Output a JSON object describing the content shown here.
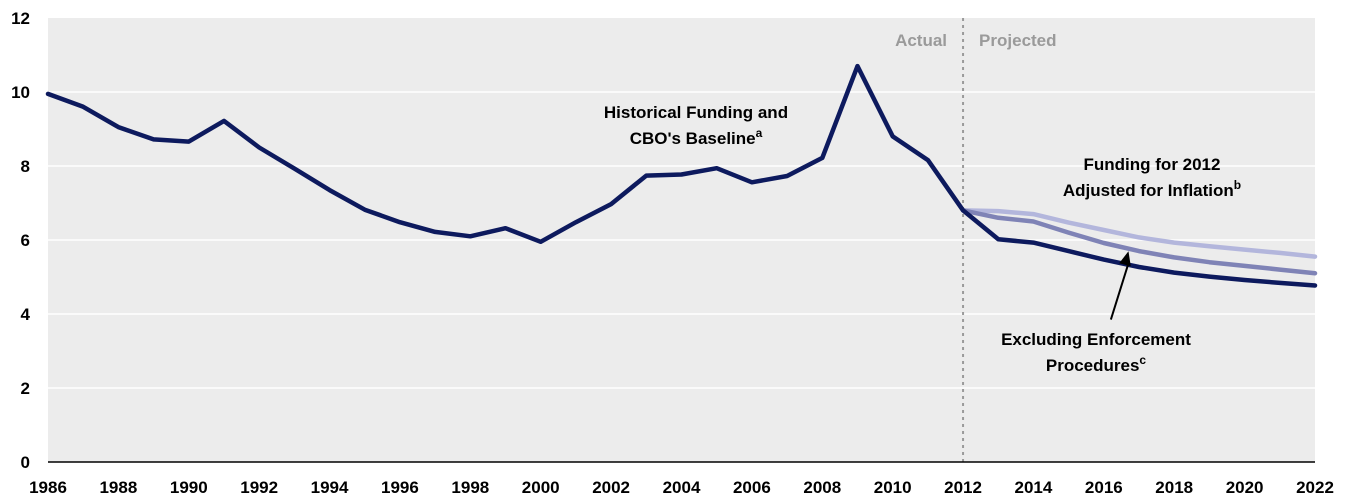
{
  "chart_data": {
    "type": "line",
    "x": [
      1986,
      1987,
      1988,
      1989,
      1990,
      1991,
      1992,
      1993,
      1994,
      1995,
      1996,
      1997,
      1998,
      1999,
      2000,
      2001,
      2002,
      2003,
      2004,
      2005,
      2006,
      2007,
      2008,
      2009,
      2010,
      2011,
      2012,
      2013,
      2014,
      2015,
      2016,
      2017,
      2018,
      2019,
      2020,
      2021,
      2022
    ],
    "xlim": [
      1986,
      2022
    ],
    "ylim": [
      0,
      12
    ],
    "yticks": [
      "0",
      "2",
      "4",
      "6",
      "8",
      "10",
      "12"
    ],
    "xticks": [
      "1986",
      "1988",
      "1990",
      "1992",
      "1994",
      "1996",
      "1998",
      "2000",
      "2002",
      "2004",
      "2006",
      "2008",
      "2010",
      "2012",
      "2014",
      "2016",
      "2018",
      "2020",
      "2022"
    ],
    "divider_x": 2012,
    "region_labels": {
      "actual": "Actual",
      "projected": "Projected"
    },
    "grid": true,
    "series": [
      {
        "key": "baseline",
        "color": "#0d1a5e",
        "x": [
          1986,
          1987,
          1988,
          1989,
          1990,
          1991,
          1992,
          1993,
          1994,
          1995,
          1996,
          1997,
          1998,
          1999,
          2000,
          2001,
          2002,
          2003,
          2004,
          2005,
          2006,
          2007,
          2008,
          2009,
          2010,
          2011,
          2012,
          2013,
          2014,
          2015,
          2016,
          2017,
          2018,
          2019,
          2020,
          2021,
          2022
        ],
        "values": [
          9.95,
          9.6,
          9.05,
          8.72,
          8.66,
          9.22,
          8.5,
          7.93,
          7.35,
          6.82,
          6.48,
          6.22,
          6.1,
          6.32,
          5.95,
          6.48,
          6.97,
          7.74,
          7.77,
          7.94,
          7.56,
          7.73,
          8.22,
          10.7,
          8.8,
          8.16,
          6.8,
          6.02,
          5.93,
          5.7,
          5.47,
          5.27,
          5.12,
          5.01,
          4.92,
          4.84,
          4.77
        ]
      },
      {
        "key": "inflation",
        "color": "#b3b6dc",
        "x": [
          2012,
          2013,
          2014,
          2015,
          2016,
          2017,
          2018,
          2019,
          2020,
          2021,
          2022
        ],
        "values": [
          6.8,
          6.78,
          6.7,
          6.47,
          6.27,
          6.07,
          5.93,
          5.83,
          5.74,
          5.65,
          5.55
        ]
      },
      {
        "key": "excluding",
        "color": "#7f83b6",
        "x": [
          2012,
          2013,
          2014,
          2015,
          2016,
          2017,
          2018,
          2019,
          2020,
          2021,
          2022
        ],
        "values": [
          6.8,
          6.6,
          6.5,
          6.2,
          5.92,
          5.7,
          5.53,
          5.4,
          5.3,
          5.2,
          5.1
        ]
      }
    ],
    "annotations": [
      {
        "key": "baseline",
        "lines": [
          "Historical Funding and",
          "CBO's Baseline"
        ],
        "superscript": "a"
      },
      {
        "key": "inflation",
        "lines": [
          "Funding for 2012",
          "Adjusted for Inflation"
        ],
        "superscript": "b"
      },
      {
        "key": "excluding",
        "lines": [
          "Excluding Enforcement",
          "Procedures"
        ],
        "superscript": "c"
      }
    ]
  }
}
